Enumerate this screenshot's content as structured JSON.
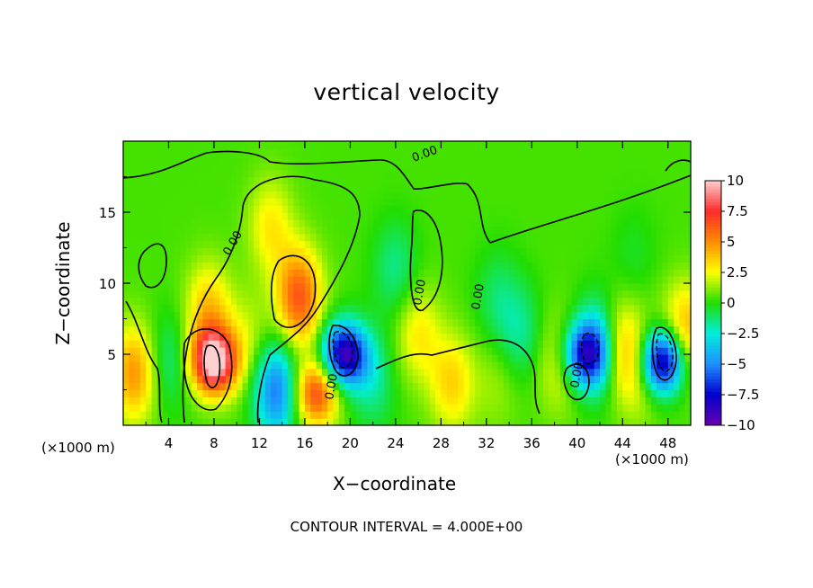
{
  "chart_data": {
    "type": "heatmap",
    "title": "vertical velocity",
    "xlabel": "X−coordinate",
    "ylabel": "Z−coordinate",
    "x_unit": "(×1000 m)",
    "footnote": "CONTOUR INTERVAL = 4.000E+00",
    "xlim": [
      0,
      50
    ],
    "ylim": [
      0,
      20
    ],
    "x_ticks": [
      4,
      8,
      12,
      16,
      20,
      24,
      28,
      32,
      36,
      40,
      44,
      48
    ],
    "x_tick_labels": [
      "4",
      "8",
      "12",
      "16",
      "20",
      "24",
      "28",
      "32",
      "36",
      "40",
      "44",
      "48"
    ],
    "y_ticks": [
      5,
      10,
      15
    ],
    "y_tick_labels": [
      "5",
      "10",
      "15"
    ],
    "colorbar": {
      "range": [
        -10,
        10
      ],
      "ticks": [
        10,
        7.5,
        5,
        2.5,
        0,
        -2.5,
        -5,
        -7.5,
        -10
      ],
      "tick_labels": [
        "10",
        "7.5",
        "5",
        "2.5",
        "0",
        "−2.5",
        "−5",
        "−7.5",
        "−10"
      ],
      "colors": [
        "#ffd0d0",
        "#ff2a2a",
        "#ff8c00",
        "#ffff00",
        "#22dd00",
        "#00eedd",
        "#1e90ff",
        "#0000cc",
        "#6a00b0"
      ]
    },
    "contour_labels": [
      "0.00",
      "0.00",
      "0.00",
      "0.00",
      "0.00",
      "0.00"
    ],
    "features": [
      {
        "x": 1.0,
        "z": 3.7,
        "w": 4.5
      },
      {
        "x": 4.0,
        "z": 4.5,
        "w": -2.0
      },
      {
        "x": 7.5,
        "z": 8.0,
        "w": 3.5
      },
      {
        "x": 8.0,
        "z": 4.5,
        "w": 10.0
      },
      {
        "x": 11.0,
        "z": 6.0,
        "w": 1.5
      },
      {
        "x": 13.5,
        "z": 2.5,
        "w": -6.0
      },
      {
        "x": 15.5,
        "z": 9.0,
        "w": 6.0
      },
      {
        "x": 13.0,
        "z": 14.0,
        "w": 2.5
      },
      {
        "x": 17.0,
        "z": 2.3,
        "w": 6.5
      },
      {
        "x": 19.5,
        "z": 5.0,
        "w": -9.5
      },
      {
        "x": 22.0,
        "z": 3.0,
        "w": -2.0
      },
      {
        "x": 26.0,
        "z": 6.5,
        "w": 2.5
      },
      {
        "x": 29.0,
        "z": 3.0,
        "w": 3.0
      },
      {
        "x": 33.0,
        "z": 3.0,
        "w": 1.0
      },
      {
        "x": 35.0,
        "z": 6.5,
        "w": -2.0
      },
      {
        "x": 38.5,
        "z": 4.5,
        "w": 2.5
      },
      {
        "x": 40.5,
        "z": 5.0,
        "w": -7.0
      },
      {
        "x": 42.0,
        "z": 5.5,
        "w": -5.0
      },
      {
        "x": 43.5,
        "z": 5.5,
        "w": 4.0
      },
      {
        "x": 45.5,
        "z": 4.0,
        "w": 2.5
      },
      {
        "x": 47.5,
        "z": 4.5,
        "w": -10.0
      },
      {
        "x": 49.5,
        "z": 6.5,
        "w": 4.0
      },
      {
        "x": 24.0,
        "z": 11.0,
        "w": -2.0
      },
      {
        "x": 33.0,
        "z": 9.0,
        "w": -1.5
      },
      {
        "x": 45.0,
        "z": 12.0,
        "w": -0.8
      }
    ]
  }
}
